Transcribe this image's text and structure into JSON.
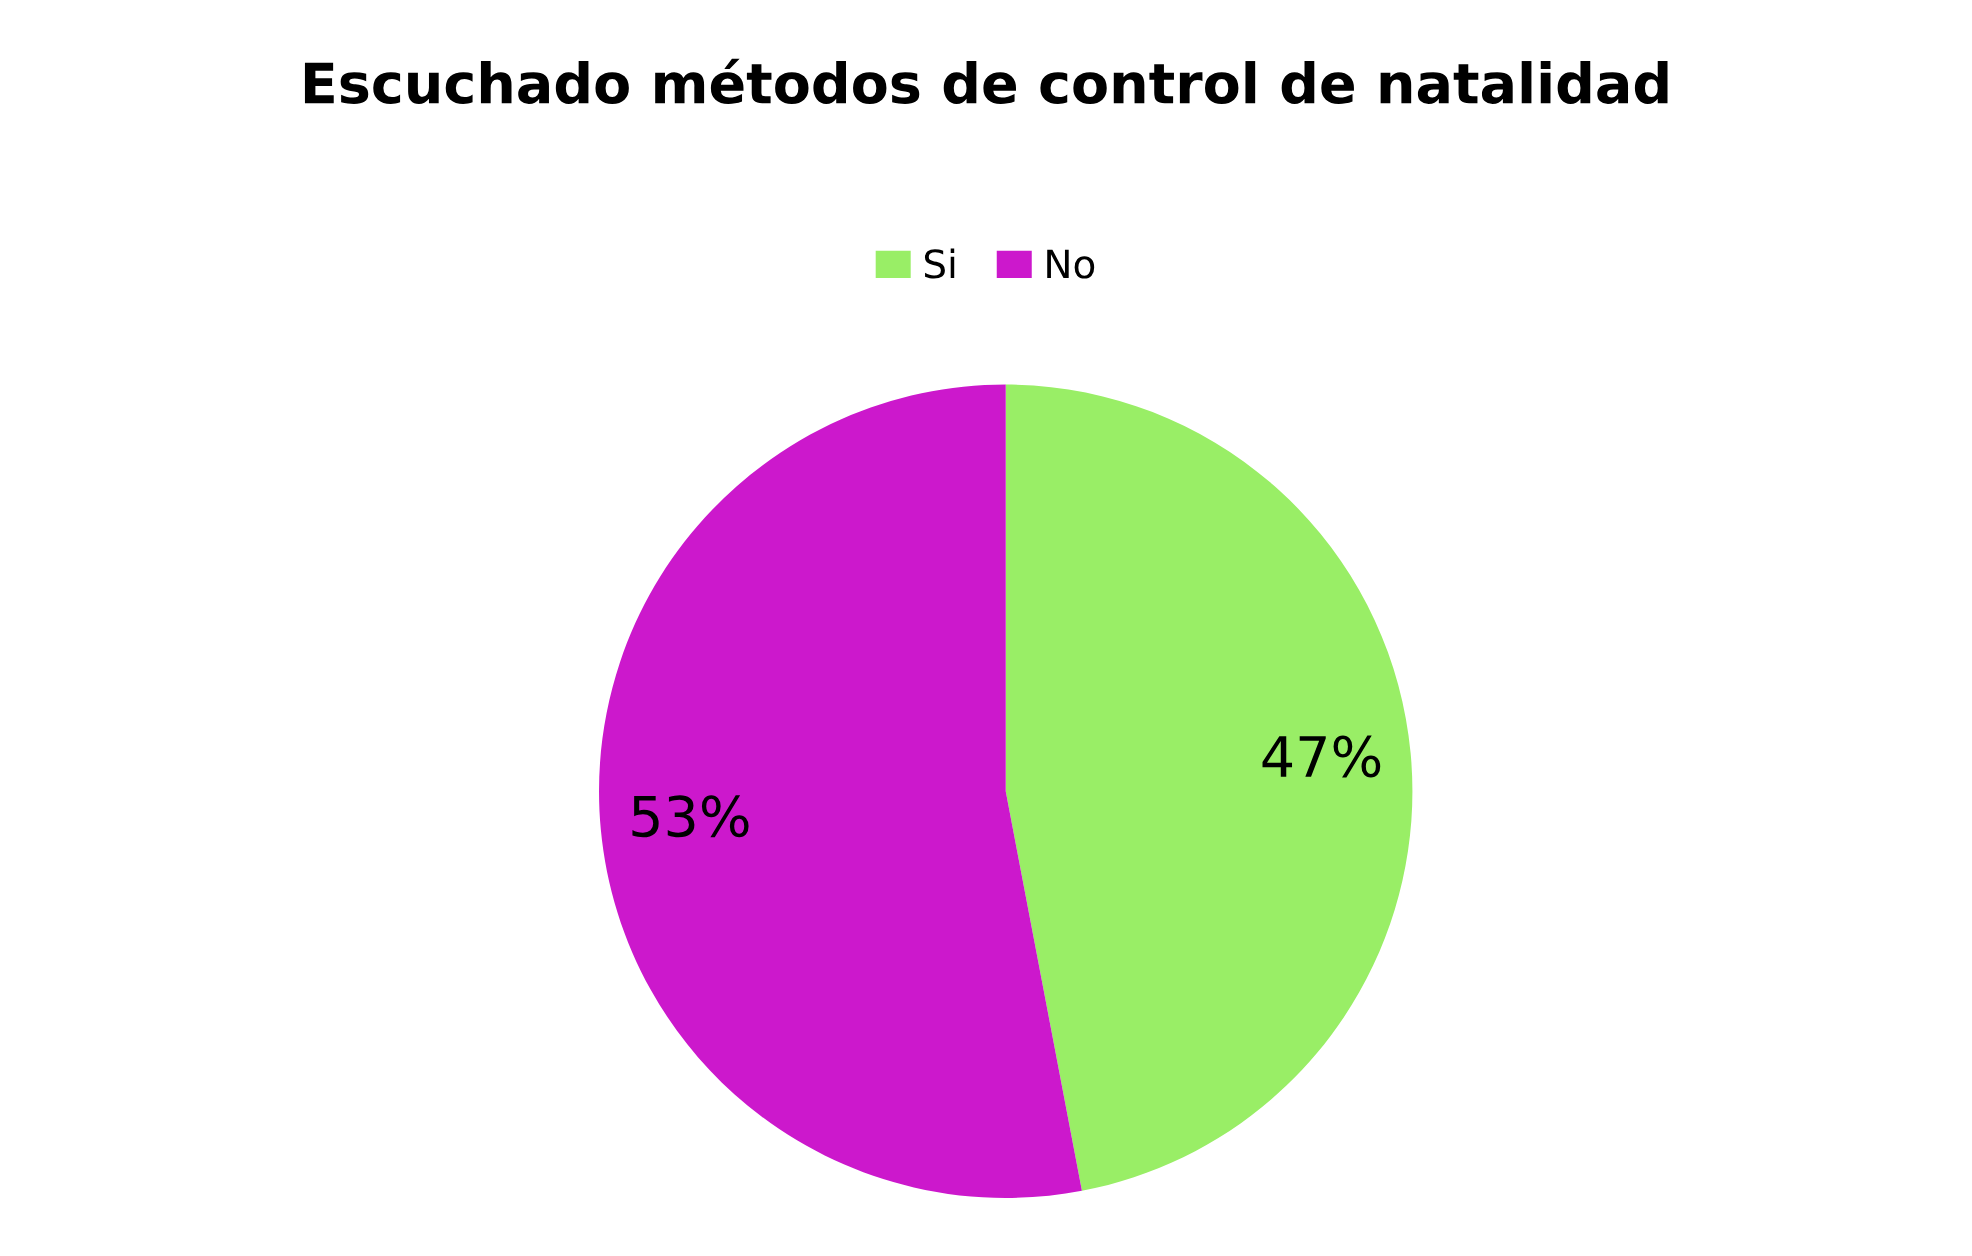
{
  "chart_data": {
    "type": "pie",
    "title": "Escuchado métodos de control de natalidad",
    "categories": [
      "Si",
      "No"
    ],
    "values": [
      47,
      53
    ],
    "value_labels": [
      "47%",
      "53%"
    ],
    "colors": [
      "#99ee66",
      "#cc18cc"
    ],
    "legend": "top"
  }
}
